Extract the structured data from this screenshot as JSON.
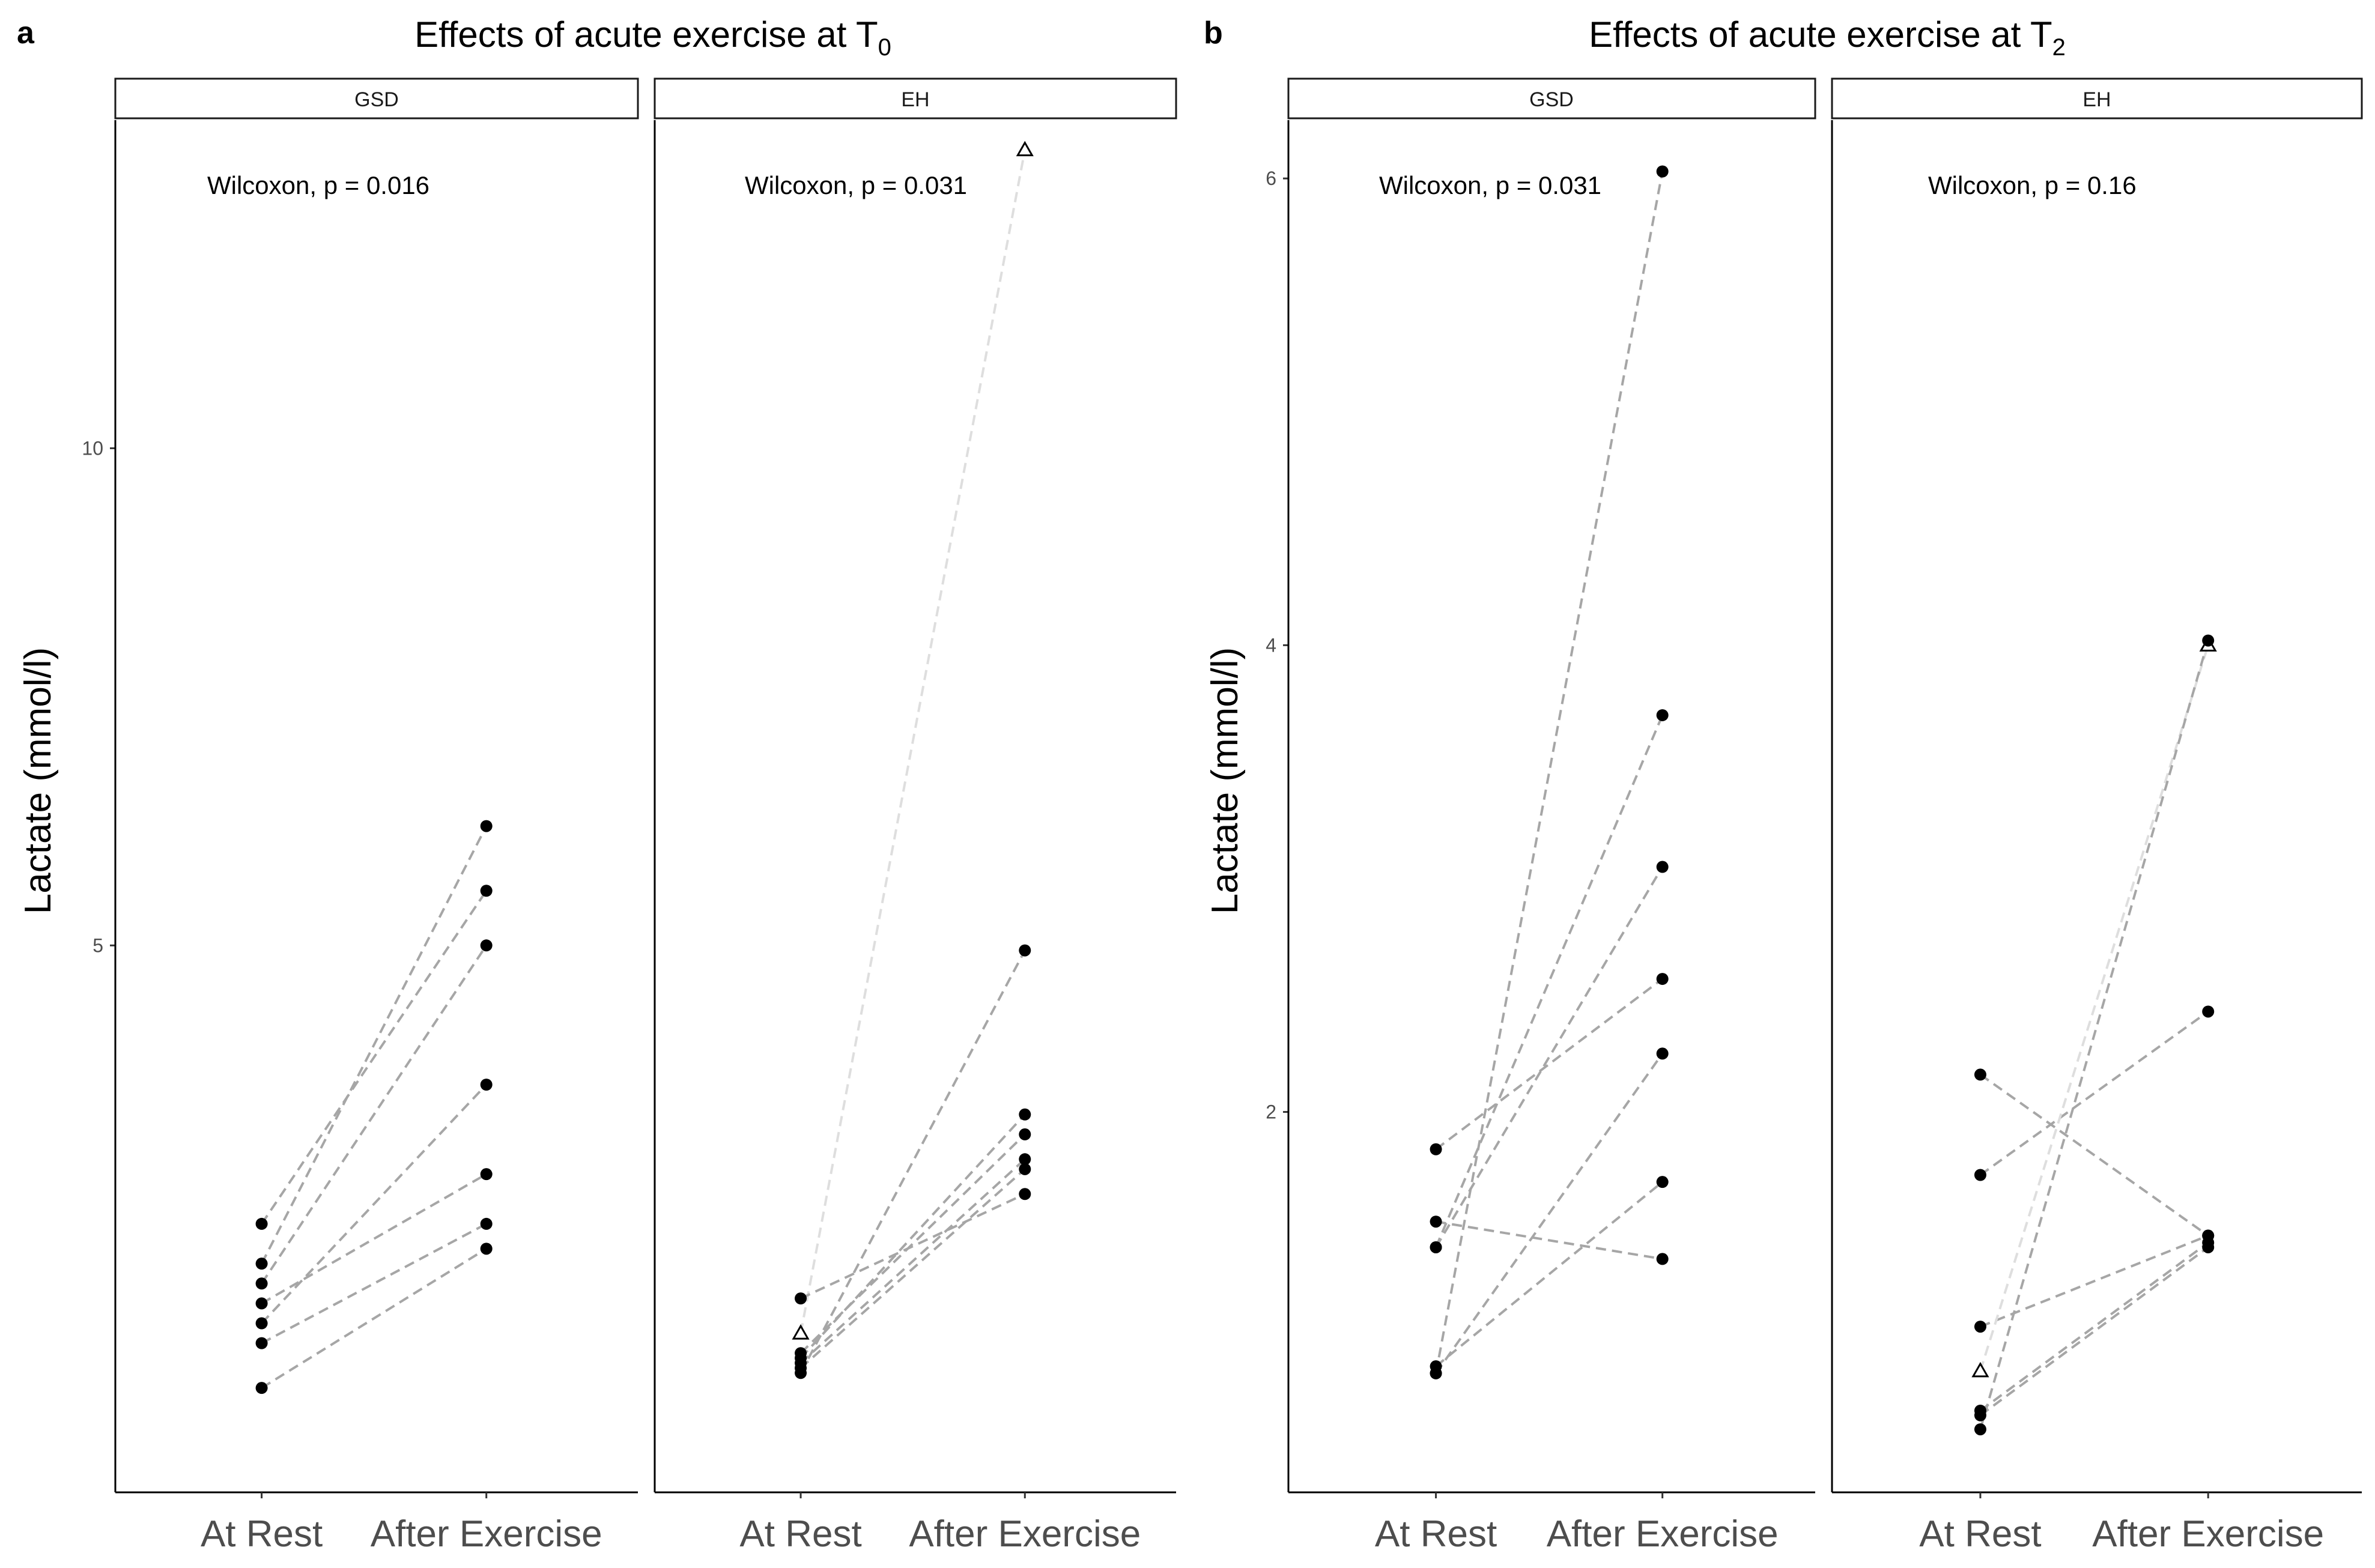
{
  "chart_data": [
    {
      "panel_label": "a",
      "title_main": "Effects of acute exercise at T",
      "title_sub": "0",
      "type": "line",
      "ylabel": "Lactate (mmol/l)",
      "ylim": [
        -0.5,
        13.3
      ],
      "yticks": [
        5,
        10
      ],
      "ytick_labels": [
        "5",
        "10"
      ],
      "x_categories": [
        "At Rest",
        "After Exercise"
      ],
      "facets": [
        {
          "strip": "GSD",
          "annotation": "Wilcoxon, p = 0.016",
          "pairs": [
            {
              "rest": 0.55,
              "exercise": 1.95,
              "shape": "circle"
            },
            {
              "rest": 1.0,
              "exercise": 2.2,
              "shape": "circle"
            },
            {
              "rest": 1.2,
              "exercise": 3.6,
              "shape": "circle"
            },
            {
              "rest": 1.4,
              "exercise": 2.7,
              "shape": "circle"
            },
            {
              "rest": 1.6,
              "exercise": 5.0,
              "shape": "circle"
            },
            {
              "rest": 1.8,
              "exercise": 6.2,
              "shape": "circle"
            },
            {
              "rest": 2.2,
              "exercise": 5.55,
              "shape": "circle"
            }
          ]
        },
        {
          "strip": "EH",
          "annotation": "Wilcoxon, p = 0.031",
          "pairs": [
            {
              "rest": 0.75,
              "exercise": 2.75,
              "shape": "circle"
            },
            {
              "rest": 0.8,
              "exercise": 2.85,
              "shape": "circle"
            },
            {
              "rest": 0.85,
              "exercise": 3.3,
              "shape": "circle"
            },
            {
              "rest": 0.9,
              "exercise": 3.1,
              "shape": "circle"
            },
            {
              "rest": 1.1,
              "exercise": 13.0,
              "shape": "triangle"
            },
            {
              "rest": 1.45,
              "exercise": 2.5,
              "shape": "circle"
            },
            {
              "rest": 0.7,
              "exercise": 4.95,
              "shape": "circle"
            }
          ]
        }
      ]
    },
    {
      "panel_label": "b",
      "title_main": "Effects of acute exercise at T",
      "title_sub": "2",
      "type": "line",
      "ylabel": "Lactate (mmol/l)",
      "ylim": [
        0.37,
        6.25
      ],
      "yticks": [
        2,
        4,
        6
      ],
      "ytick_labels": [
        "2",
        "4",
        "6"
      ],
      "x_categories": [
        "At Rest",
        "After Exercise"
      ],
      "facets": [
        {
          "strip": "GSD",
          "annotation": "Wilcoxon, p = 0.031",
          "pairs": [
            {
              "rest": 0.88,
              "exercise": 6.03,
              "shape": "circle"
            },
            {
              "rest": 0.91,
              "exercise": 1.7,
              "shape": "circle"
            },
            {
              "rest": 0.88,
              "exercise": 2.25,
              "shape": "circle"
            },
            {
              "rest": 1.42,
              "exercise": 3.05,
              "shape": "circle"
            },
            {
              "rest": 1.53,
              "exercise": 1.37,
              "shape": "circle"
            },
            {
              "rest": 1.84,
              "exercise": 2.57,
              "shape": "circle"
            },
            {
              "rest": 1.42,
              "exercise": 3.7,
              "shape": "circle"
            }
          ]
        },
        {
          "strip": "EH",
          "annotation": "Wilcoxon, p = 0.16",
          "pairs": [
            {
              "rest": 2.16,
              "exercise": 1.47,
              "shape": "circle"
            },
            {
              "rest": 1.73,
              "exercise": 2.43,
              "shape": "circle"
            },
            {
              "rest": 1.08,
              "exercise": 1.47,
              "shape": "circle"
            },
            {
              "rest": 0.89,
              "exercise": 4.0,
              "shape": "triangle"
            },
            {
              "rest": 0.72,
              "exercise": 1.44,
              "shape": "circle"
            },
            {
              "rest": 0.7,
              "exercise": 1.42,
              "shape": "circle"
            },
            {
              "rest": 0.64,
              "exercise": 4.02,
              "shape": "circle"
            }
          ]
        }
      ]
    }
  ]
}
